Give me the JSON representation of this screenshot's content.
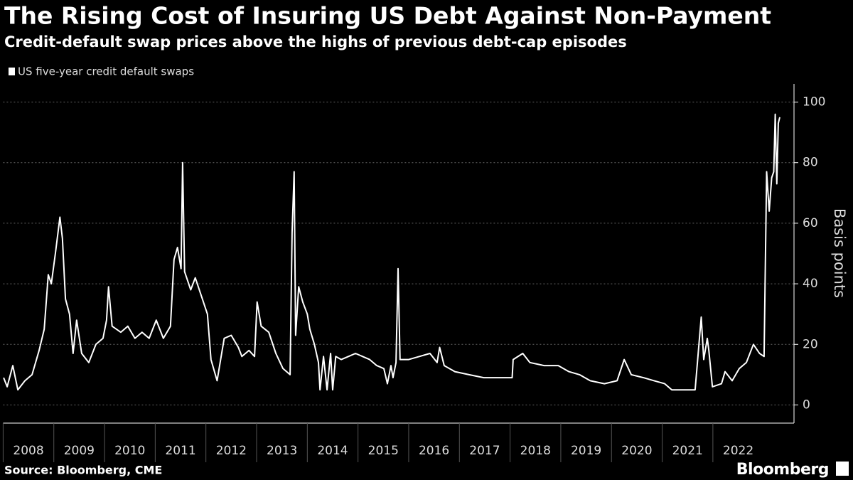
{
  "chart_data": {
    "type": "line",
    "title": "The Rising Cost of Insuring US Debt Against Non-Payment",
    "subtitle": "Credit-default swap prices above the highs of previous debt-cap episodes",
    "y_label": "Basis points",
    "source": "Source: Bloomberg, CME",
    "brand": "Bloomberg",
    "legend": "top-left",
    "grid": true,
    "xlim": [
      2008,
      2023.6
    ],
    "xticks": [
      2008,
      2009,
      2010,
      2011,
      2012,
      2013,
      2014,
      2015,
      2016,
      2017,
      2018,
      2019,
      2020,
      2021,
      2022
    ],
    "ylim": [
      -6,
      106
    ],
    "yticks": [
      0,
      20,
      40,
      60,
      80,
      100
    ],
    "x": [
      2008.01,
      2008.08,
      2008.19,
      2008.29,
      2008.43,
      2008.57,
      2008.71,
      2008.81,
      2008.89,
      2008.95,
      2009.03,
      2009.12,
      2009.17,
      2009.23,
      2009.31,
      2009.38,
      2009.45,
      2009.55,
      2009.69,
      2009.83,
      2009.97,
      2010.04,
      2010.08,
      2010.15,
      2010.32,
      2010.46,
      2010.6,
      2010.74,
      2010.88,
      2011.02,
      2011.16,
      2011.3,
      2011.37,
      2011.44,
      2011.51,
      2011.54,
      2011.58,
      2011.7,
      2011.79,
      2011.93,
      2012.03,
      2012.1,
      2012.22,
      2012.36,
      2012.5,
      2012.64,
      2012.71,
      2012.85,
      2012.96,
      2013.01,
      2013.09,
      2013.24,
      2013.38,
      2013.52,
      2013.66,
      2013.7,
      2013.74,
      2013.77,
      2013.83,
      2013.91,
      2014.0,
      2014.05,
      2014.14,
      2014.22,
      2014.25,
      2014.32,
      2014.39,
      2014.46,
      2014.5,
      2014.56,
      2014.67,
      2014.81,
      2014.95,
      2015.09,
      2015.23,
      2015.37,
      2015.51,
      2015.58,
      2015.65,
      2015.69,
      2015.75,
      2015.79,
      2015.83,
      2016.0,
      2016.21,
      2016.42,
      2016.56,
      2016.61,
      2016.7,
      2016.91,
      2017.19,
      2017.48,
      2017.76,
      2018.04,
      2018.06,
      2018.25,
      2018.39,
      2018.67,
      2018.95,
      2019.16,
      2019.37,
      2019.58,
      2019.86,
      2020.11,
      2020.25,
      2020.39,
      2020.63,
      2020.84,
      2021.05,
      2021.19,
      2021.4,
      2021.65,
      2021.71,
      2021.77,
      2021.82,
      2021.89,
      2021.92,
      2021.99,
      2022.17,
      2022.24,
      2022.38,
      2022.52,
      2022.66,
      2022.8,
      2022.92,
      2023.01,
      2023.06,
      2023.11,
      2023.16,
      2023.2,
      2023.23,
      2023.26,
      2023.29,
      2023.32
    ],
    "series": [
      {
        "name": "US five-year credit default swaps",
        "color": "#ffffff",
        "values": [
          9,
          6,
          13,
          5,
          8,
          10,
          18,
          25,
          43,
          40,
          50,
          62,
          55,
          35,
          30,
          17,
          28,
          17,
          14,
          20,
          22,
          28,
          39,
          26,
          24,
          26,
          22,
          24,
          22,
          28,
          22,
          26,
          48,
          52,
          45,
          80,
          44,
          38,
          42,
          35,
          30,
          15,
          8,
          22,
          23,
          19,
          16,
          18,
          16,
          34,
          26,
          24,
          17,
          12,
          10,
          57,
          77,
          23,
          39,
          34,
          30,
          25,
          20,
          14,
          5,
          16,
          5,
          17,
          5,
          16,
          15,
          16,
          17,
          16,
          15,
          13,
          12,
          7,
          13,
          9,
          14,
          45,
          15,
          15,
          16,
          17,
          14,
          19,
          13,
          11,
          10,
          9,
          9,
          9,
          15,
          17,
          14,
          13,
          13,
          11,
          10,
          8,
          7,
          8,
          15,
          10,
          9,
          8,
          7,
          5,
          5,
          5,
          17,
          29,
          15,
          22,
          18,
          6,
          7,
          11,
          8,
          12,
          14,
          20,
          17,
          16,
          77,
          64,
          75,
          77,
          96,
          73,
          93,
          95
        ]
      }
    ]
  }
}
